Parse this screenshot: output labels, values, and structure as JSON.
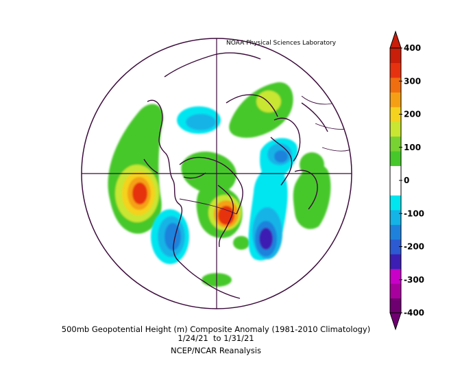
{
  "credit": "NOAA Physical Sciences Laboratory",
  "caption": {
    "line1": "500mb Geopotential Height (m) Composite Anomaly (1981-2010 Climatology)",
    "line2": "1/24/21  to 1/31/21",
    "line3": "NCEP/NCAR Reanalysis"
  },
  "colorbar": {
    "labels": [
      "400",
      "300",
      "200",
      "100",
      "0",
      "-100",
      "-200",
      "-300",
      "-400"
    ],
    "colors": [
      "#6e0070",
      "#a8009e",
      "#c800c8",
      "#3c1eb4",
      "#2c5ad2",
      "#1e82dc",
      "#14b4e6",
      "#00e6f0",
      "#ffffff",
      "#ffffff",
      "#46c82a",
      "#78d232",
      "#c8e632",
      "#f5d21e",
      "#f5a014",
      "#f06e0f",
      "#e6320f",
      "#c81e0a"
    ]
  },
  "colors": {
    "outline": "#3a0a3a",
    "background": "#ffffff"
  }
}
